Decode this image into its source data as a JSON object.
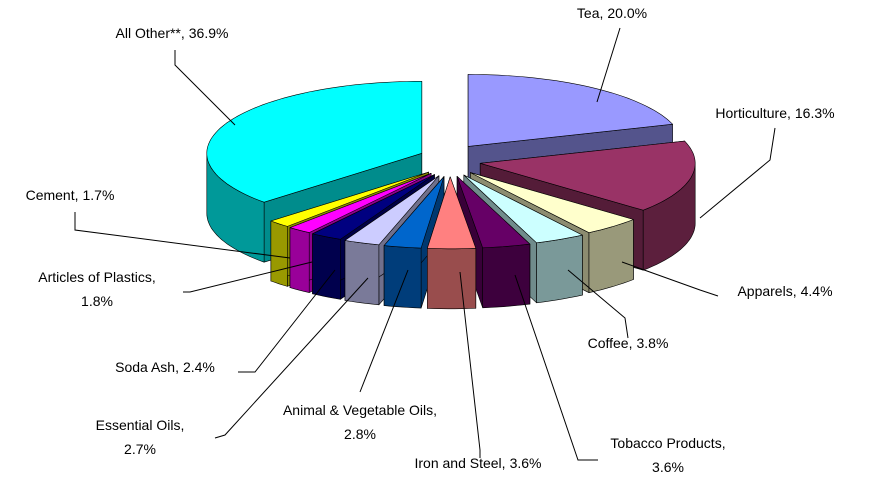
{
  "chart_data": {
    "type": "pie3d",
    "categories": [
      "Tea,",
      "Horticulture,",
      "Apparels,",
      "Coffee,",
      "Tobacco Products,",
      "Iron and Steel,",
      "Animal & Vegetable Oils,",
      "Essential Oils,",
      "Soda Ash,",
      "Articles of Plastics,",
      "Cement,",
      "All Other**,"
    ],
    "values": [
      20.0,
      16.3,
      4.4,
      3.8,
      3.6,
      3.6,
      2.8,
      2.7,
      2.4,
      1.8,
      1.7,
      36.9
    ],
    "value_labels": [
      "20.0%",
      "16.3%",
      "4.4%",
      "3.8%",
      "3.6%",
      "3.6%",
      "2.8%",
      "2.7%",
      "2.4%",
      "1.8%",
      "1.7%",
      "36.9%"
    ],
    "colors": [
      "#9999ff",
      "#993366",
      "#ffffcc",
      "#ccffff",
      "#660066",
      "#ff8080",
      "#0066cc",
      "#ccccff",
      "#000080",
      "#ff00ff",
      "#ffff00",
      "#00ffff"
    ]
  }
}
